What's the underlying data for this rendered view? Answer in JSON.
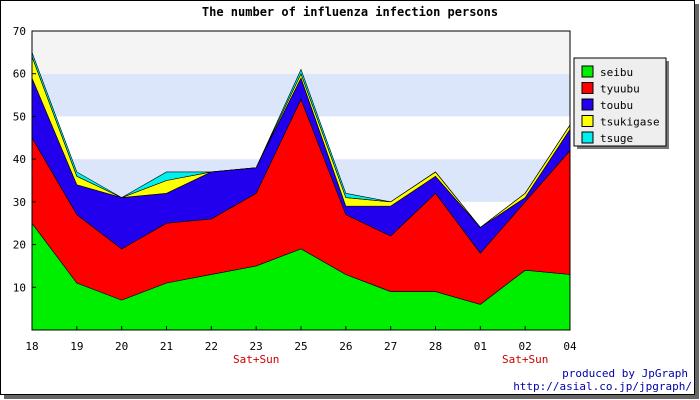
{
  "chart_data": {
    "type": "area",
    "title": "The number of influenza infection persons",
    "categories": [
      "18",
      "19",
      "20",
      "21",
      "22",
      "23",
      "25",
      "26",
      "27",
      "28",
      "01",
      "02",
      "04"
    ],
    "category_notes": [
      "",
      "",
      "",
      "",
      "",
      "Sat+Sun",
      "",
      "",
      "",
      "",
      "",
      "Sat+Sun",
      ""
    ],
    "ylim": [
      0,
      70
    ],
    "yticks": [
      10,
      20,
      30,
      40,
      50,
      60,
      70
    ],
    "stacked": true,
    "grid": "horizontal bands",
    "legend_position": "right",
    "series": [
      {
        "name": "seibu",
        "color": "#00ee00",
        "values": [
          25,
          11,
          7,
          11,
          13,
          15,
          19,
          13,
          9,
          9,
          6,
          14,
          13
        ]
      },
      {
        "name": "tyuubu",
        "color": "#ff0000",
        "values": [
          20,
          16,
          12,
          14,
          13,
          17,
          35,
          14,
          13,
          23,
          12,
          16,
          29
        ]
      },
      {
        "name": "toubu",
        "color": "#2200ee",
        "values": [
          14,
          7,
          12,
          7,
          11,
          6,
          5,
          2,
          7,
          4,
          6,
          1,
          5
        ]
      },
      {
        "name": "tsukigase",
        "color": "#ffff00",
        "values": [
          5,
          2,
          0,
          3,
          0,
          0,
          1,
          2,
          1,
          1,
          0,
          1,
          1
        ]
      },
      {
        "name": "tsuge",
        "color": "#00eeee",
        "values": [
          1,
          1,
          0,
          2,
          0,
          0,
          1,
          1,
          0,
          0,
          0,
          0,
          0
        ]
      }
    ]
  },
  "credit": {
    "line1": "produced by JpGraph",
    "line2": "http://asial.co.jp/jpgraph/"
  }
}
